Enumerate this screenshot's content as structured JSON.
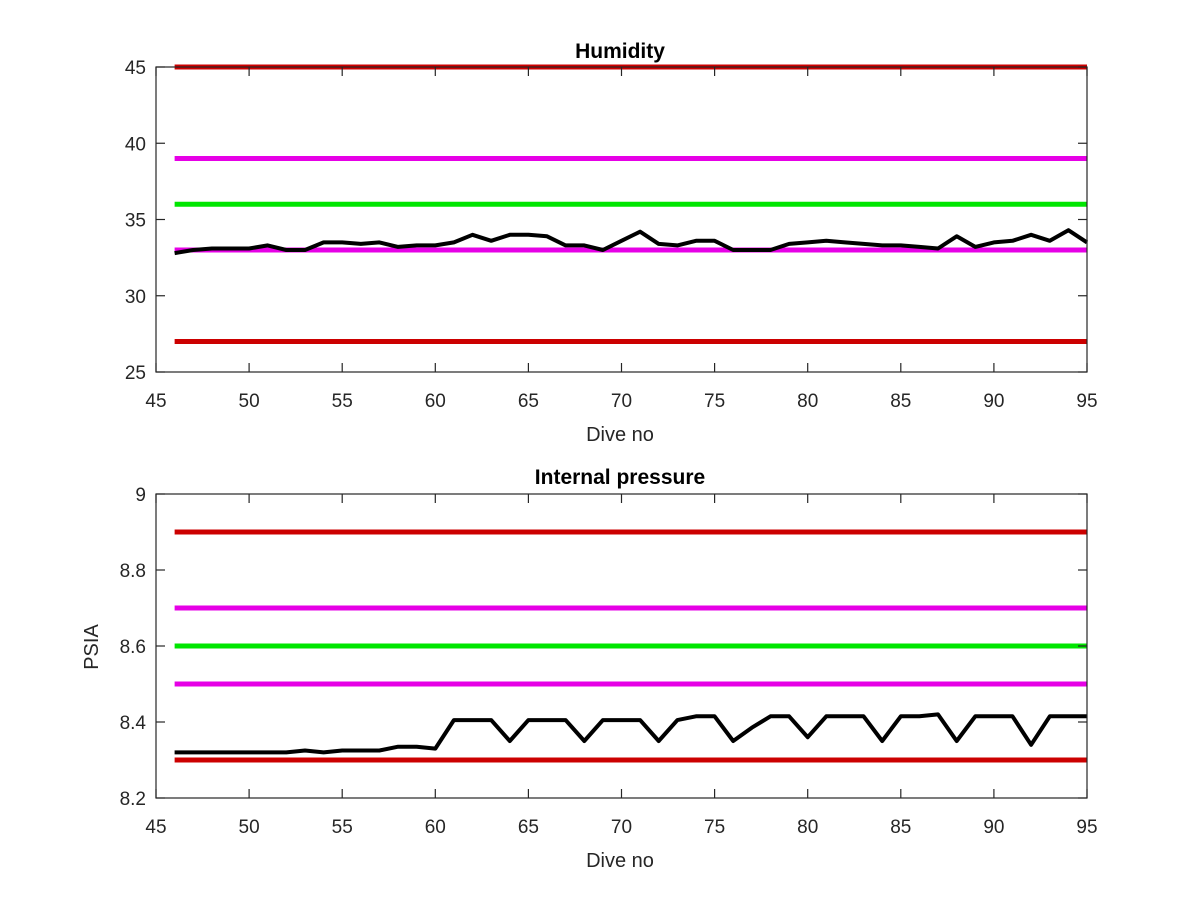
{
  "figure": {
    "background": "#ffffff",
    "axis_color": "#262626"
  },
  "chart_data": [
    {
      "type": "line",
      "title": "Humidity",
      "xlabel": "Dive no",
      "ylabel": "",
      "xlim": [
        45,
        95
      ],
      "ylim": [
        25,
        45
      ],
      "xticks": [
        45,
        50,
        55,
        60,
        65,
        70,
        75,
        80,
        85,
        90,
        95
      ],
      "yticks": [
        25,
        30,
        35,
        40,
        45
      ],
      "grid": false,
      "limits": [
        {
          "value": 45,
          "color": "#cc0000"
        },
        {
          "value": 39,
          "color": "#e600e6"
        },
        {
          "value": 36,
          "color": "#00e600"
        },
        {
          "value": 33,
          "color": "#e600e6"
        },
        {
          "value": 27,
          "color": "#cc0000"
        }
      ],
      "series": [
        {
          "color": "#000000",
          "x": [
            46,
            47,
            48,
            49,
            50,
            51,
            52,
            53,
            54,
            55,
            56,
            57,
            58,
            59,
            60,
            61,
            62,
            63,
            64,
            65,
            66,
            67,
            68,
            69,
            70,
            71,
            72,
            73,
            74,
            75,
            76,
            77,
            78,
            79,
            80,
            81,
            82,
            83,
            84,
            85,
            86,
            87,
            88,
            89,
            90,
            91,
            92,
            93,
            94,
            95
          ],
          "y": [
            32.8,
            33.0,
            33.1,
            33.1,
            33.1,
            33.3,
            33.0,
            33.0,
            33.5,
            33.5,
            33.4,
            33.5,
            33.2,
            33.3,
            33.3,
            33.5,
            34.0,
            33.6,
            34.0,
            34.0,
            33.9,
            33.3,
            33.3,
            33.0,
            33.6,
            34.2,
            33.4,
            33.3,
            33.6,
            33.6,
            33.0,
            33.0,
            33.0,
            33.4,
            33.5,
            33.6,
            33.5,
            33.4,
            33.3,
            33.3,
            33.2,
            33.1,
            33.9,
            33.2,
            33.5,
            33.6,
            34.0,
            33.6,
            34.3,
            33.5
          ]
        }
      ]
    },
    {
      "type": "line",
      "title": "Internal pressure",
      "xlabel": "Dive no",
      "ylabel": "PSIA",
      "xlim": [
        45,
        95
      ],
      "ylim": [
        8.2,
        9.0
      ],
      "xticks": [
        45,
        50,
        55,
        60,
        65,
        70,
        75,
        80,
        85,
        90,
        95
      ],
      "yticks": [
        8.2,
        8.4,
        8.6,
        8.8,
        9.0
      ],
      "ytick_labels": [
        "8.2",
        "8.4",
        "8.6",
        "8.8",
        "9"
      ],
      "grid": false,
      "limits": [
        {
          "value": 8.9,
          "color": "#cc0000"
        },
        {
          "value": 8.7,
          "color": "#e600e6"
        },
        {
          "value": 8.6,
          "color": "#00e600"
        },
        {
          "value": 8.5,
          "color": "#e600e6"
        },
        {
          "value": 8.3,
          "color": "#cc0000"
        }
      ],
      "series": [
        {
          "color": "#000000",
          "x": [
            46,
            47,
            48,
            49,
            50,
            51,
            52,
            53,
            54,
            55,
            56,
            57,
            58,
            59,
            60,
            61,
            62,
            63,
            64,
            65,
            66,
            67,
            68,
            69,
            70,
            71,
            72,
            73,
            74,
            75,
            76,
            77,
            78,
            79,
            80,
            81,
            82,
            83,
            84,
            85,
            86,
            87,
            88,
            89,
            90,
            91,
            92,
            93,
            94,
            95
          ],
          "y": [
            8.32,
            8.32,
            8.32,
            8.32,
            8.32,
            8.32,
            8.32,
            8.325,
            8.32,
            8.325,
            8.325,
            8.325,
            8.335,
            8.335,
            8.33,
            8.405,
            8.405,
            8.405,
            8.35,
            8.405,
            8.405,
            8.405,
            8.35,
            8.405,
            8.405,
            8.405,
            8.35,
            8.405,
            8.415,
            8.415,
            8.35,
            8.385,
            8.415,
            8.415,
            8.36,
            8.415,
            8.415,
            8.415,
            8.35,
            8.415,
            8.415,
            8.42,
            8.35,
            8.415,
            8.415,
            8.415,
            8.34,
            8.415,
            8.415,
            8.415
          ]
        }
      ]
    }
  ]
}
